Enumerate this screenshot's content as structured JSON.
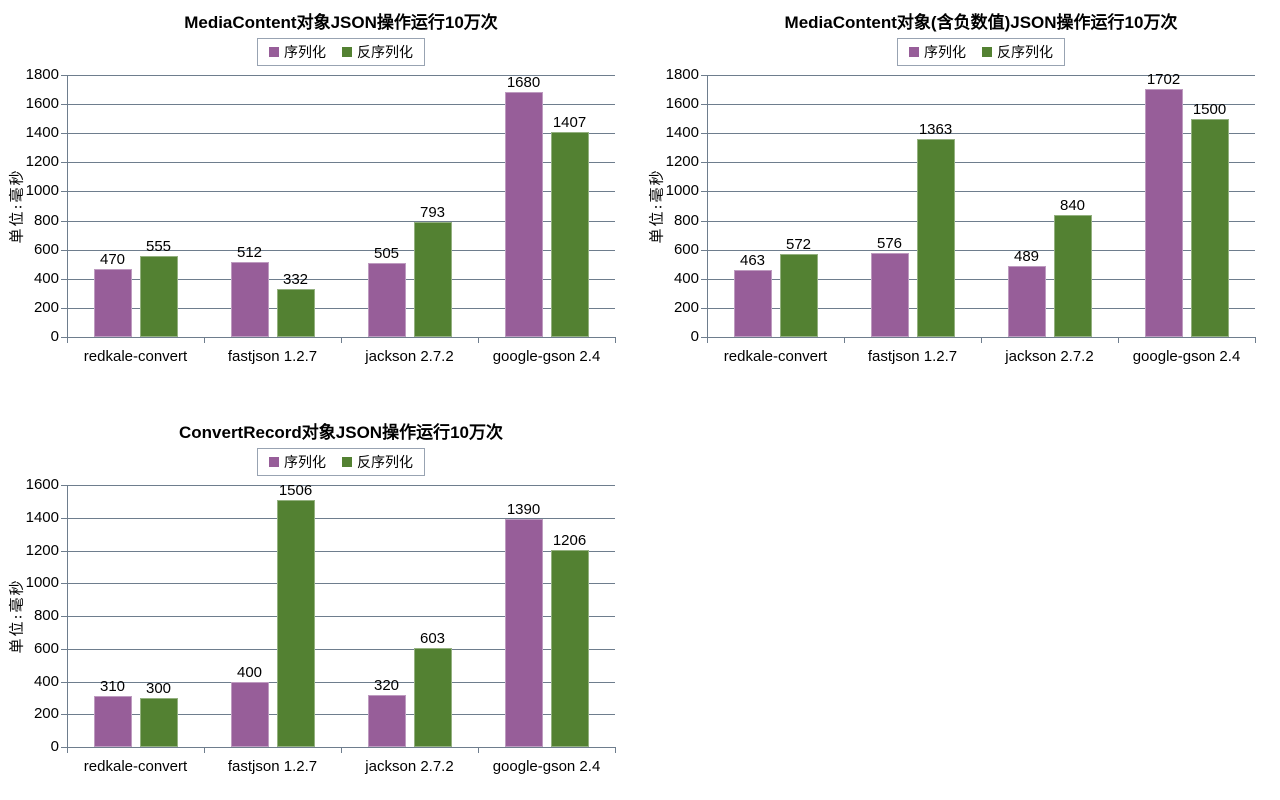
{
  "page": {
    "background": "#ffffff"
  },
  "colors": {
    "serialize_bar": "#975E99",
    "deserialize_bar": "#538132",
    "gridline": "#6E7D8D",
    "axis": "#6E7D8D",
    "legend_border": "#98A3B2",
    "text": "#000000"
  },
  "chart_data": [
    {
      "type": "bar",
      "title": "MediaContent对象JSON操作运行10万次",
      "ylabel": "单位:毫秒",
      "xlabel": "",
      "ylim": [
        0,
        1800
      ],
      "ystep": 200,
      "grid": true,
      "legend_position": "top",
      "categories": [
        "redkale-convert",
        "fastjson 1.2.7",
        "jackson 2.7.2",
        "google-gson 2.4"
      ],
      "series": [
        {
          "name": "序列化",
          "color": "#975E99",
          "values": [
            470,
            512,
            505,
            1680
          ]
        },
        {
          "name": "反序列化",
          "color": "#538132",
          "values": [
            555,
            332,
            793,
            1407
          ]
        }
      ]
    },
    {
      "type": "bar",
      "title": "MediaContent对象(含负数值)JSON操作运行10万次",
      "ylabel": "单位:毫秒",
      "xlabel": "",
      "ylim": [
        0,
        1800
      ],
      "ystep": 200,
      "grid": true,
      "legend_position": "top",
      "categories": [
        "redkale-convert",
        "fastjson 1.2.7",
        "jackson 2.7.2",
        "google-gson 2.4"
      ],
      "series": [
        {
          "name": "序列化",
          "color": "#975E99",
          "values": [
            463,
            576,
            489,
            1702
          ]
        },
        {
          "name": "反序列化",
          "color": "#538132",
          "values": [
            572,
            1363,
            840,
            1500
          ]
        }
      ]
    },
    {
      "type": "bar",
      "title": "ConvertRecord对象JSON操作运行10万次",
      "ylabel": "单位:毫秒",
      "xlabel": "",
      "ylim": [
        0,
        1600
      ],
      "ystep": 200,
      "grid": true,
      "legend_position": "top",
      "categories": [
        "redkale-convert",
        "fastjson 1.2.7",
        "jackson 2.7.2",
        "google-gson 2.4"
      ],
      "series": [
        {
          "name": "序列化",
          "color": "#975E99",
          "values": [
            310,
            400,
            320,
            1390
          ]
        },
        {
          "name": "反序列化",
          "color": "#538132",
          "values": [
            300,
            1506,
            603,
            1206
          ]
        }
      ]
    }
  ]
}
